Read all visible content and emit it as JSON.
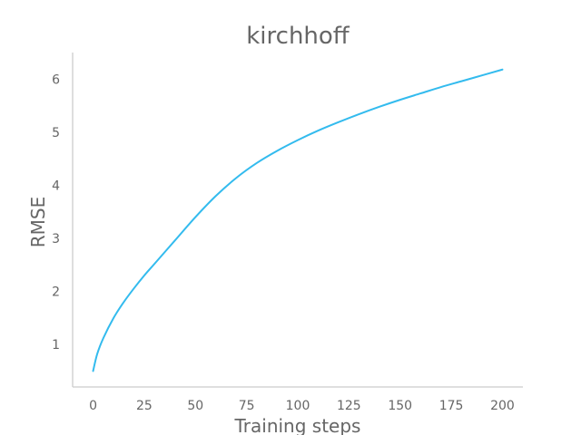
{
  "chart_data": {
    "type": "line",
    "title": "kirchhoff",
    "xlabel": "Training steps",
    "ylabel": "RMSE",
    "xlim": [
      -10,
      210
    ],
    "ylim": [
      0.2,
      6.5
    ],
    "x_ticks": [
      0,
      25,
      50,
      75,
      100,
      125,
      150,
      175,
      200
    ],
    "y_ticks": [
      1,
      2,
      3,
      4,
      5,
      6
    ],
    "grid": false,
    "legend": "none",
    "series": [
      {
        "color": "#33bbee",
        "x": [
          0,
          2,
          5,
          10,
          15,
          20,
          25,
          30,
          40,
          50,
          60,
          70,
          80,
          90,
          100,
          110,
          120,
          130,
          140,
          150,
          160,
          170,
          180,
          190,
          200
        ],
        "y": [
          0.5,
          0.82,
          1.12,
          1.5,
          1.8,
          2.06,
          2.3,
          2.52,
          2.96,
          3.4,
          3.8,
          4.14,
          4.42,
          4.65,
          4.85,
          5.03,
          5.19,
          5.34,
          5.48,
          5.61,
          5.73,
          5.85,
          5.96,
          6.07,
          6.18
        ]
      }
    ]
  }
}
